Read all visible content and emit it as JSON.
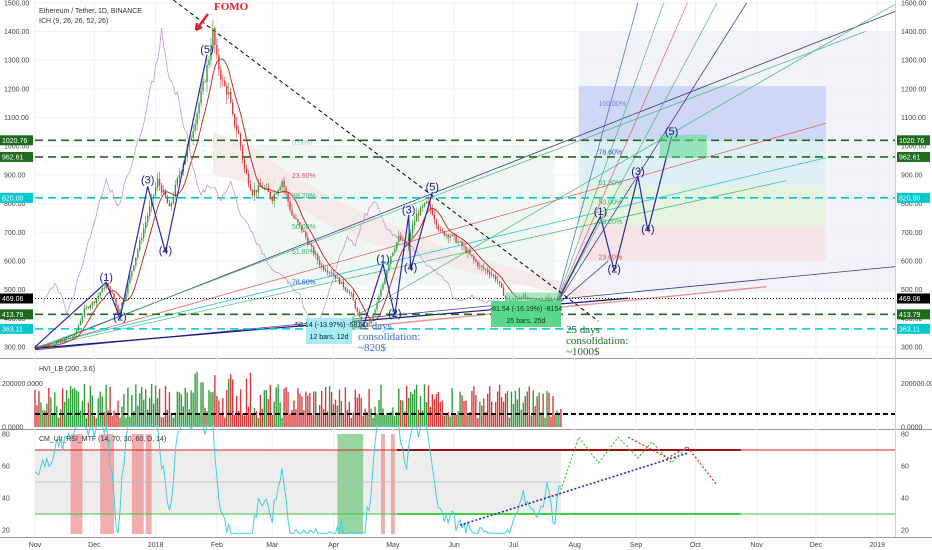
{
  "header": {
    "title": "Ethereum / Tether, 1D, BINANCE",
    "indicator": "ICH (9, 26, 26, 52, 26)"
  },
  "chart_data": {
    "type": "candlestick",
    "symbol": "Ethereum / Tether",
    "price_axis": {
      "ticks": [
        300,
        400,
        500,
        600,
        700,
        800,
        900,
        1000,
        1100,
        1200,
        1300,
        1400,
        1500
      ],
      "tick_labels": [
        "300.00",
        "400.00",
        "500.00",
        "600.00",
        "700.00",
        "800.00",
        "900.00",
        "1000.00",
        "1100.00",
        "1200.00",
        "1300.00",
        "1400.00",
        "1500.00"
      ],
      "ylim": [
        265,
        1510
      ]
    },
    "time_axis": {
      "labels": [
        "Nov",
        "Dec",
        "2018",
        "Feb",
        "Mar",
        "Apr",
        "May",
        "Jun",
        "Jul",
        "Aug",
        "Sep",
        "Oct",
        "Nov",
        "Dec",
        "2019"
      ],
      "label_days": [
        0,
        30,
        61,
        92,
        120,
        151,
        181,
        212,
        242,
        273,
        304,
        334,
        365,
        395,
        426
      ],
      "end_day": 435
    },
    "levels": [
      {
        "value": 1020.76,
        "label": "1020.76",
        "color": "#1e6b1e",
        "style": "dashed"
      },
      {
        "value": 962.61,
        "label": "962.61",
        "color": "#1e6b1e",
        "style": "dashed"
      },
      {
        "value": 820.0,
        "label": "820.00",
        "color": "#00c8d0",
        "style": "dashed"
      },
      {
        "value": 469.06,
        "label": "469.06",
        "color": "#000000",
        "style": "dotted"
      },
      {
        "value": 413.79,
        "label": "413.79",
        "color": "#1e6b1e",
        "style": "dashed"
      },
      {
        "value": 363.11,
        "label": "363.11",
        "color": "#00c8d0",
        "style": "dashed"
      }
    ],
    "price_path": [
      [
        0,
        300
      ],
      [
        10,
        310
      ],
      [
        20,
        340
      ],
      [
        25,
        430
      ],
      [
        30,
        460
      ],
      [
        36,
        520
      ],
      [
        40,
        470
      ],
      [
        42,
        420
      ],
      [
        45,
        470
      ],
      [
        52,
        640
      ],
      [
        57,
        760
      ],
      [
        62,
        880
      ],
      [
        66,
        820
      ],
      [
        68,
        780
      ],
      [
        72,
        880
      ],
      [
        78,
        1010
      ],
      [
        82,
        1120
      ],
      [
        86,
        1240
      ],
      [
        88,
        1310
      ],
      [
        90,
        1400
      ],
      [
        92,
        1300
      ],
      [
        95,
        1220
      ],
      [
        98,
        1180
      ],
      [
        100,
        1100
      ],
      [
        103,
        1040
      ],
      [
        106,
        920
      ],
      [
        110,
        840
      ],
      [
        115,
        860
      ],
      [
        120,
        820
      ],
      [
        125,
        880
      ],
      [
        130,
        760
      ],
      [
        135,
        710
      ],
      [
        140,
        640
      ],
      [
        145,
        580
      ],
      [
        150,
        560
      ],
      [
        155,
        520
      ],
      [
        160,
        480
      ],
      [
        162,
        440
      ],
      [
        164,
        400
      ],
      [
        166,
        370
      ],
      [
        170,
        390
      ],
      [
        173,
        450
      ],
      [
        176,
        520
      ],
      [
        180,
        620
      ],
      [
        184,
        680
      ],
      [
        188,
        650
      ],
      [
        190,
        700
      ],
      [
        193,
        760
      ],
      [
        198,
        800
      ],
      [
        201,
        770
      ],
      [
        205,
        700
      ],
      [
        210,
        690
      ],
      [
        215,
        660
      ],
      [
        220,
        620
      ],
      [
        225,
        580
      ],
      [
        230,
        560
      ],
      [
        234,
        530
      ],
      [
        238,
        470
      ],
      [
        242,
        460
      ],
      [
        246,
        480
      ],
      [
        250,
        460
      ],
      [
        255,
        460
      ],
      [
        259,
        470
      ],
      [
        263,
        440
      ],
      [
        266,
        470
      ]
    ],
    "waves": [
      {
        "label": "(1)",
        "day": 36,
        "price": 530
      },
      {
        "label": "(2)",
        "day": 43,
        "price": 393
      },
      {
        "label": "(3)",
        "day": 57,
        "price": 870
      },
      {
        "label": "(4)",
        "day": 66,
        "price": 625
      },
      {
        "label": "(5)",
        "day": 87,
        "price": 1325
      },
      {
        "label": "(1)",
        "day": 176,
        "price": 595
      },
      {
        "label": "(2)",
        "day": 182,
        "price": 405
      },
      {
        "label": "(3)",
        "day": 189,
        "price": 765
      },
      {
        "label": "(4)",
        "day": 190,
        "price": 565
      },
      {
        "label": "(5)",
        "day": 201,
        "price": 845
      },
      {
        "label": "(1)",
        "day": 286,
        "price": 760
      },
      {
        "label": "(2)",
        "day": 293,
        "price": 560
      },
      {
        "label": "(3)",
        "day": 305,
        "price": 900
      },
      {
        "label": "(4)",
        "day": 310,
        "price": 700
      },
      {
        "label": "(5)",
        "day": 322,
        "price": 1040
      }
    ],
    "fib_levels": [
      {
        "label": "100.00%",
        "price": 1140,
        "color": "#8080e0"
      },
      {
        "label": "78.60%",
        "price": 972,
        "color": "#2a5ad8"
      },
      {
        "label": "61.80%",
        "price": 865,
        "color": "#3cb371"
      },
      {
        "label": "50.00%",
        "price": 797,
        "color": "#3cb371"
      },
      {
        "label": "38.20%",
        "price": 728,
        "color": "#3cb371"
      },
      {
        "label": "23.60%",
        "price": 605,
        "color": "#e05050"
      }
    ],
    "fib_levels_left": [
      {
        "label": "0.00%",
        "price": 1005,
        "color": "#90c8e0"
      },
      {
        "label": "23.60%",
        "price": 890,
        "color": "#e05050"
      },
      {
        "label": "38.20%",
        "price": 820,
        "color": "#3cb371"
      },
      {
        "label": "50.00%",
        "price": 712,
        "color": "#3cb371"
      },
      {
        "label": "61.80%",
        "price": 625,
        "color": "#3cb371"
      },
      {
        "label": "78.60%",
        "price": 517,
        "color": "#2a5ad8"
      }
    ],
    "annotations": [
      {
        "text": "FOMO",
        "color": "#e02020"
      },
      {
        "text": "-58.14 (-13.97%) -5814",
        "color": "#0a2060"
      },
      {
        "text": "12 bars, 12d",
        "color": "#0a2060"
      },
      {
        "text": "12 days",
        "color": "#3a6ad8"
      },
      {
        "text": "consolidation:",
        "color": "#3a6ad8"
      },
      {
        "text": "~820$",
        "color": "#3a6ad8"
      },
      {
        "text": "-81.54 (-16.19%) -8154",
        "color": "#0a3a0a"
      },
      {
        "text": "25 bars, 25d",
        "color": "#0a3a0a"
      },
      {
        "text": "25 days",
        "color": "#1e6b1e"
      },
      {
        "text": "consolidation:",
        "color": "#1e6b1e"
      },
      {
        "text": "~1000$",
        "color": "#1e6b1e"
      }
    ],
    "volume_panel": {
      "title": "HVI_LB (200, 3.6)",
      "ticks": [
        0,
        200000
      ],
      "tick_labels": [
        "0.0000",
        "200000.0000"
      ]
    },
    "rsi_panel": {
      "title": "CM_Ult_RSI_MTF (14, 70, 30, 60, D, 14)",
      "ticks": [
        20,
        40,
        60,
        80
      ],
      "tick_labels": [
        "20",
        "40",
        "60",
        "80"
      ],
      "overbought": 70,
      "oversold": 30
    }
  }
}
